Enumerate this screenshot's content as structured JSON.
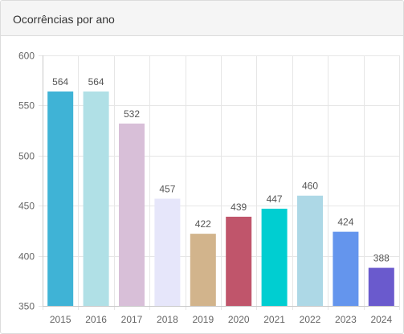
{
  "panel": {
    "title": "Ocorrências por ano"
  },
  "chart_data": {
    "type": "bar",
    "title": "",
    "xlabel": "",
    "ylabel": "",
    "categories": [
      "2015",
      "2016",
      "2017",
      "2018",
      "2019",
      "2020",
      "2021",
      "2022",
      "2023",
      "2024"
    ],
    "values": [
      564,
      564,
      532,
      457,
      422,
      439,
      447,
      460,
      424,
      388
    ],
    "colors": [
      "#3fb3d6",
      "#b0e0e6",
      "#d8bfd8",
      "#e6e6fa",
      "#d2b48c",
      "#c0556b",
      "#00ced1",
      "#add8e6",
      "#6495ed",
      "#6a5acd"
    ],
    "ylim": [
      350,
      600
    ],
    "yticks": [
      350,
      400,
      450,
      500,
      550,
      600
    ],
    "grid": true,
    "data_labels": true,
    "legend": "none"
  }
}
